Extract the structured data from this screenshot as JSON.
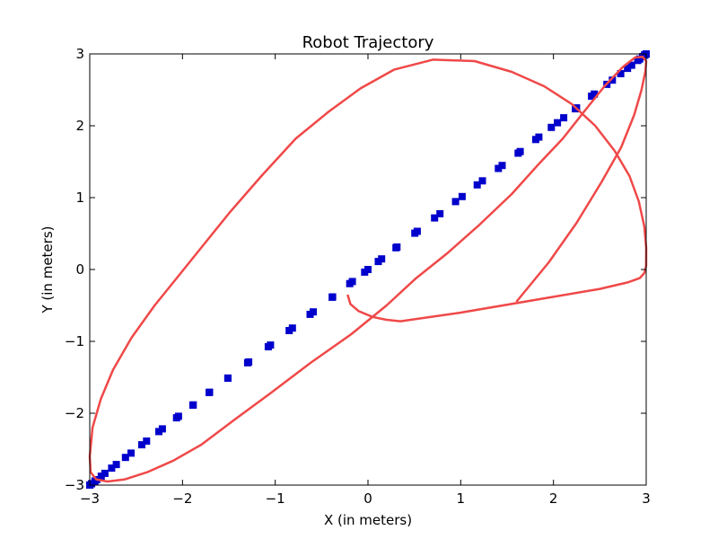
{
  "chart_data": {
    "type": "scatter",
    "title": "Robot Trajectory",
    "xlabel": "X (in meters)",
    "ylabel": "Y (in meters)",
    "xlim": [
      -3,
      3
    ],
    "ylim": [
      -3,
      3
    ],
    "xticks": [
      "−3",
      "−2",
      "−1",
      "0",
      "1",
      "2",
      "3"
    ],
    "yticks": [
      "3",
      "2",
      "1",
      "0",
      "−1",
      "−2",
      "−3"
    ],
    "grid": false,
    "colors": {
      "reference": "#0000cc",
      "trajectory": "#f04848"
    },
    "series": [
      {
        "kind": "markers",
        "marker": "square",
        "color": "#0000cc",
        "x": [
          0,
          0.147,
          0.313,
          0.505,
          0.718,
          0.945,
          1.178,
          1.406,
          1.619,
          1.809,
          1.977,
          2.111,
          2.249,
          2.411,
          2.576,
          2.725,
          2.843,
          2.929,
          2.982,
          2.999,
          2.999,
          2.986,
          2.961,
          2.909,
          2.799,
          2.635,
          2.441,
          2.236,
          2.043,
          1.843,
          1.641,
          1.447,
          1.234,
          1.015,
          0.776,
          0.531,
          0.302,
          0.111,
          -0.036,
          -0.196,
          -0.381,
          -0.59,
          -0.815,
          -1.051,
          -1.286,
          -1.511,
          -1.713,
          -1.888,
          -2.043,
          -2.217,
          -2.387,
          -2.555,
          -2.714,
          -2.836,
          -2.925,
          -2.98,
          -2.999,
          -2.999,
          -2.981,
          -2.944,
          -2.876,
          -2.764,
          -2.615,
          -2.439,
          -2.255,
          -2.064,
          -1.884,
          -1.708,
          -1.511,
          -1.298,
          -1.075,
          -0.85,
          -0.624,
          -0.386,
          -0.168
        ],
        "y": [
          0,
          0.147,
          0.313,
          0.505,
          0.718,
          0.945,
          1.178,
          1.406,
          1.619,
          1.809,
          1.977,
          2.111,
          2.249,
          2.411,
          2.576,
          2.725,
          2.843,
          2.929,
          2.982,
          2.999,
          2.999,
          2.986,
          2.961,
          2.909,
          2.799,
          2.635,
          2.441,
          2.236,
          2.043,
          1.843,
          1.641,
          1.447,
          1.234,
          1.015,
          0.776,
          0.531,
          0.302,
          0.111,
          -0.036,
          -0.196,
          -0.381,
          -0.59,
          -0.815,
          -1.051,
          -1.286,
          -1.511,
          -1.713,
          -1.888,
          -2.043,
          -2.217,
          -2.387,
          -2.555,
          -2.714,
          -2.836,
          -2.925,
          -2.98,
          -2.999,
          -2.999,
          -2.981,
          -2.944,
          -2.876,
          -2.764,
          -2.615,
          -2.439,
          -2.255,
          -2.064,
          -1.884,
          -1.708,
          -1.511,
          -1.298,
          -1.075,
          -0.85,
          -0.624,
          -0.386,
          -0.168
        ]
      },
      {
        "kind": "line",
        "color": "#f04848",
        "x": [
          -0.22,
          -0.19,
          -0.1,
          0.05,
          0.2,
          0.35,
          1.0,
          2.0,
          2.5,
          2.8,
          2.93,
          2.98,
          2.999,
          3.0,
          2.98,
          2.92,
          2.82,
          2.66,
          2.45,
          2.2,
          1.9,
          1.55,
          1.15,
          0.7,
          0.28,
          -0.08,
          -0.42,
          -0.78,
          -1.15,
          -1.5,
          -1.8,
          -2.05,
          -2.3,
          -2.55,
          -2.75,
          -2.88,
          -2.97,
          -3.0,
          -2.99,
          -2.93,
          -2.81,
          -2.62,
          -2.38,
          -2.1,
          -1.8,
          -1.45,
          -1.05,
          -0.62,
          -0.18,
          0.2,
          0.52,
          0.85,
          1.2,
          1.55,
          1.85,
          2.1,
          2.32,
          2.55,
          2.75,
          2.88,
          2.96,
          3.0,
          2.99,
          2.95,
          2.87,
          2.73,
          2.52,
          2.25,
          1.95,
          1.6
        ],
        "y": [
          -0.35,
          -0.48,
          -0.58,
          -0.66,
          -0.7,
          -0.72,
          -0.6,
          -0.38,
          -0.27,
          -0.18,
          -0.12,
          -0.05,
          0.05,
          0.3,
          0.6,
          0.95,
          1.3,
          1.65,
          2.0,
          2.3,
          2.55,
          2.75,
          2.9,
          2.92,
          2.78,
          2.52,
          2.2,
          1.82,
          1.3,
          0.78,
          0.3,
          -0.1,
          -0.5,
          -0.95,
          -1.4,
          -1.8,
          -2.2,
          -2.6,
          -2.82,
          -2.92,
          -2.95,
          -2.92,
          -2.82,
          -2.66,
          -2.44,
          -2.1,
          -1.72,
          -1.3,
          -0.9,
          -0.5,
          -0.12,
          0.22,
          0.62,
          1.05,
          1.48,
          1.82,
          2.18,
          2.55,
          2.82,
          2.95,
          2.96,
          2.9,
          2.75,
          2.5,
          2.15,
          1.7,
          1.22,
          0.65,
          0.1,
          -0.45
        ]
      }
    ]
  }
}
